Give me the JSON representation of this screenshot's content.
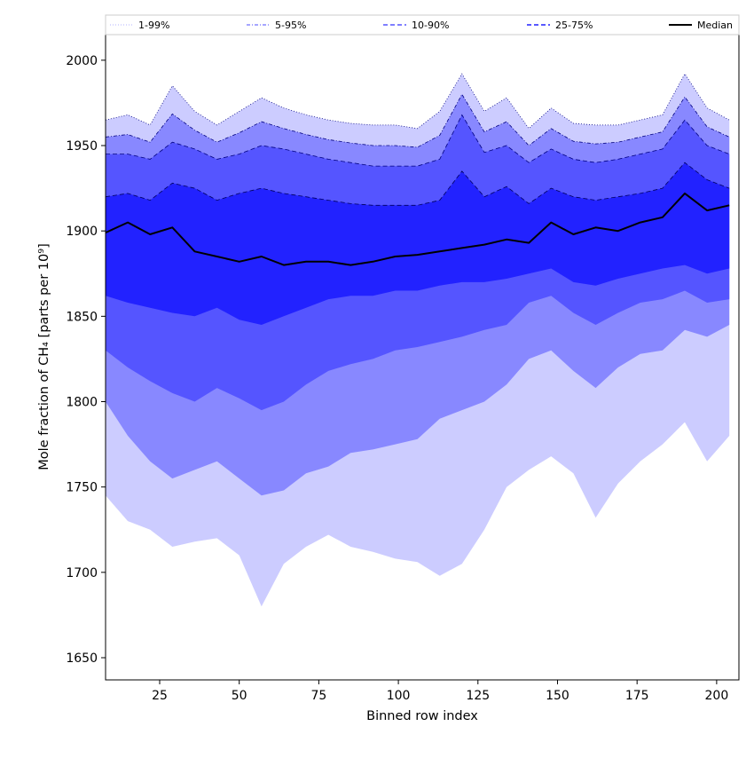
{
  "chart_data": {
    "type": "area",
    "title": "",
    "xlabel": "Binned row index",
    "ylabel": "Mole fraction of CH₄ [parts per 10⁹]",
    "xlim": [
      8,
      207
    ],
    "ylim": [
      1637,
      2015
    ],
    "xticks": [
      25,
      50,
      75,
      100,
      125,
      150,
      175,
      200
    ],
    "yticks": [
      1650,
      1700,
      1750,
      1800,
      1850,
      1900,
      1950,
      2000
    ],
    "grid": false,
    "legend_position": "top, spanning plot width",
    "legend": [
      {
        "label": "1-99%",
        "color": "#ccccff",
        "line_style": "dotted"
      },
      {
        "label": "5-95%",
        "color": "#8888ff",
        "line_style": "dash-dot"
      },
      {
        "label": "10-90%",
        "color": "#5555ff",
        "line_style": "dashed"
      },
      {
        "label": "25-75%",
        "color": "#2222ff",
        "line_style": "dashed"
      },
      {
        "label": "Median",
        "color": "#000000",
        "line_style": "solid"
      }
    ],
    "x": [
      8,
      15,
      22,
      29,
      36,
      43,
      50,
      57,
      64,
      71,
      78,
      85,
      92,
      99,
      106,
      113,
      120,
      127,
      134,
      141,
      148,
      155,
      162,
      169,
      176,
      183,
      190,
      197,
      204
    ],
    "series": [
      {
        "name": "1-99%",
        "color": "#ccccff",
        "lower": [
          1745,
          1730,
          1725,
          1715,
          1718,
          1720,
          1710,
          1680,
          1705,
          1715,
          1722,
          1715,
          1712,
          1708,
          1706,
          1698,
          1705,
          1725,
          1750,
          1760,
          1768,
          1758,
          1732,
          1752,
          1765,
          1775,
          1788,
          1765,
          1780
        ],
        "upper": [
          1965,
          1968,
          1962,
          1985,
          1970,
          1962,
          1970,
          1978,
          1972,
          1968,
          1965,
          1963,
          1962,
          1962,
          1960,
          1970,
          1992,
          1970,
          1978,
          1960,
          1972,
          1963,
          1962,
          1962,
          1965,
          1968,
          1992,
          1972,
          1965
        ]
      },
      {
        "name": "5-95%",
        "color": "#8888ff",
        "lower": [
          1800,
          1780,
          1765,
          1755,
          1760,
          1765,
          1755,
          1745,
          1748,
          1758,
          1762,
          1770,
          1772,
          1775,
          1778,
          1790,
          1795,
          1800,
          1810,
          1825,
          1830,
          1818,
          1808,
          1820,
          1828,
          1830,
          1842,
          1838,
          1845
        ]
      },
      {
        "name": "10-90%",
        "color": "#5555ff",
        "lower": [
          1830,
          1820,
          1812,
          1805,
          1800,
          1808,
          1802,
          1795,
          1800,
          1810,
          1818,
          1822,
          1825,
          1830,
          1832,
          1835,
          1838,
          1842,
          1845,
          1858,
          1862,
          1852,
          1845,
          1852,
          1858,
          1860,
          1865,
          1858,
          1860
        ],
        "upper": [
          1945,
          1945,
          1942,
          1952,
          1948,
          1942,
          1945,
          1950,
          1948,
          1945,
          1942,
          1940,
          1938,
          1938,
          1938,
          1942,
          1968,
          1946,
          1950,
          1940,
          1948,
          1942,
          1940,
          1942,
          1945,
          1948,
          1965,
          1950,
          1945
        ]
      },
      {
        "name": "25-75%",
        "color": "#2222ff",
        "lower": [
          1862,
          1858,
          1855,
          1852,
          1850,
          1855,
          1848,
          1845,
          1850,
          1855,
          1860,
          1862,
          1862,
          1865,
          1865,
          1868,
          1870,
          1870,
          1872,
          1875,
          1878,
          1870,
          1868,
          1872,
          1875,
          1878,
          1880,
          1875,
          1878
        ],
        "upper": [
          1920,
          1922,
          1918,
          1928,
          1925,
          1918,
          1922,
          1925,
          1922,
          1920,
          1918,
          1916,
          1915,
          1915,
          1915,
          1918,
          1935,
          1920,
          1926,
          1916,
          1925,
          1920,
          1918,
          1920,
          1922,
          1925,
          1940,
          1930,
          1925
        ]
      },
      {
        "name": "Median",
        "color": "#000000",
        "values": [
          1899,
          1905,
          1898,
          1902,
          1888,
          1885,
          1882,
          1885,
          1880,
          1882,
          1882,
          1880,
          1882,
          1885,
          1886,
          1888,
          1890,
          1892,
          1895,
          1893,
          1905,
          1898,
          1902,
          1900,
          1905,
          1908,
          1922,
          1912,
          1915
        ]
      }
    ]
  }
}
